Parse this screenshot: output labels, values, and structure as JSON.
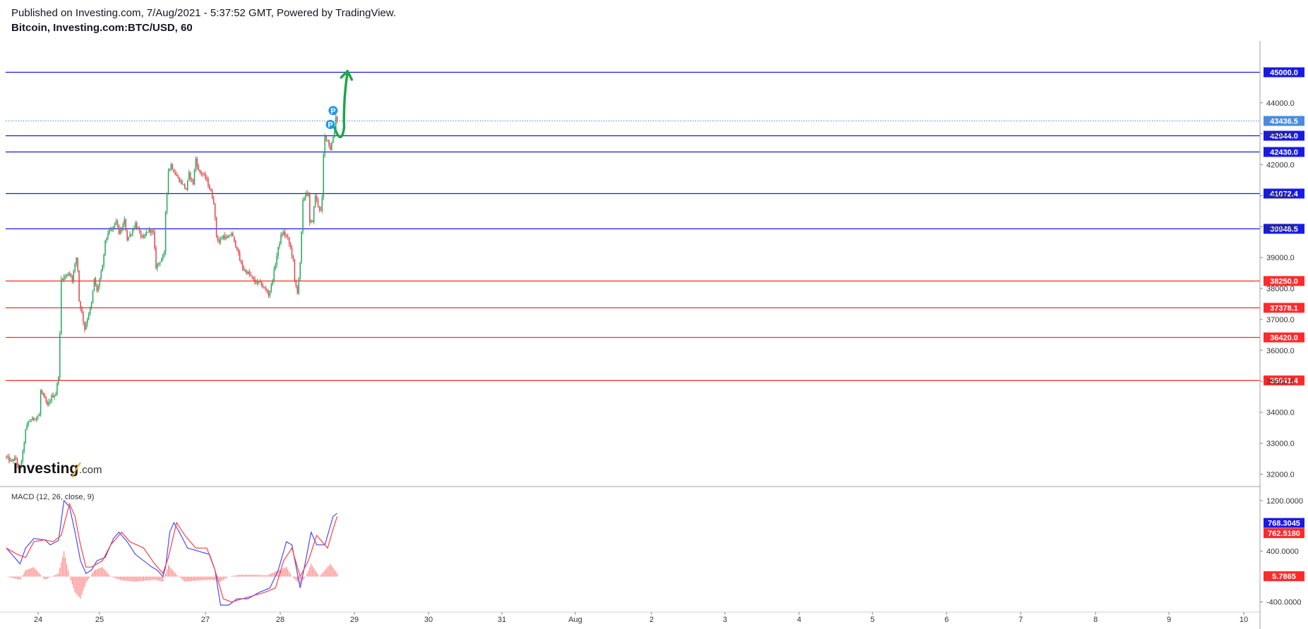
{
  "header": {
    "published": "Published on Investing.com, 7/Aug/2021 - 5:37:52 GMT, Powered by TradingView.",
    "symbol": "Bitcoin, Investing.com:BTC/USD, 60"
  },
  "logo": {
    "main": "Investing",
    "suffix": ".com"
  },
  "colors": {
    "up": "#26a65b",
    "down": "#e0454a",
    "resistance": "#1a1ae6",
    "support": "#ff2a2a",
    "macd": "#4b4bff",
    "signal": "#ff4040",
    "hist": "#ff6f6f",
    "last": "#4a8be0",
    "arrow": "#1fa64a",
    "marker": "#2196f3"
  },
  "chart_data": [
    {
      "type": "candlestick",
      "title": "Bitcoin, Investing.com:BTC/USD, 60",
      "x_ticks": [
        "24",
        "25",
        "27",
        "28",
        "29",
        "30",
        "31",
        "Aug",
        "2",
        "3",
        "4",
        "5",
        "6",
        "7",
        "8",
        "9",
        "10"
      ],
      "y_ticks": [
        "32000.0",
        "33000.0",
        "34000.0",
        "35000.0",
        "36000.0",
        "37000.0",
        "38000.0",
        "39000.0",
        "40000.0",
        "41000.0",
        "42000.0",
        "43000.0",
        "44000.0"
      ],
      "ylim": [
        31600,
        46000
      ],
      "candles_path": [
        [
          0,
          32550
        ],
        [
          3,
          32420
        ],
        [
          7,
          32500
        ],
        [
          9,
          32150
        ],
        [
          10,
          32200
        ],
        [
          12,
          32700
        ],
        [
          14,
          33400
        ],
        [
          16,
          33700
        ],
        [
          20,
          33800
        ],
        [
          24,
          33900
        ],
        [
          25,
          34700
        ],
        [
          27,
          34500
        ],
        [
          30,
          34200
        ],
        [
          33,
          34500
        ],
        [
          36,
          34600
        ],
        [
          38,
          35200
        ],
        [
          39,
          36500
        ],
        [
          40,
          38300
        ],
        [
          43,
          38400
        ],
        [
          46,
          38500
        ],
        [
          48,
          38300
        ],
        [
          51,
          39000
        ],
        [
          52,
          38600
        ],
        [
          53,
          37600
        ],
        [
          55,
          37200
        ],
        [
          57,
          36700
        ],
        [
          60,
          37200
        ],
        [
          62,
          37500
        ],
        [
          64,
          38300
        ],
        [
          66,
          37900
        ],
        [
          68,
          38300
        ],
        [
          70,
          38700
        ],
        [
          72,
          39500
        ],
        [
          74,
          39800
        ],
        [
          77,
          39900
        ],
        [
          80,
          40200
        ],
        [
          82,
          39800
        ],
        [
          84,
          39900
        ],
        [
          86,
          40200
        ],
        [
          88,
          39600
        ],
        [
          91,
          39800
        ],
        [
          94,
          40100
        ],
        [
          96,
          39900
        ],
        [
          98,
          39700
        ],
        [
          100,
          39600
        ],
        [
          102,
          39800
        ],
        [
          104,
          39900
        ],
        [
          107,
          39800
        ],
        [
          109,
          38700
        ],
        [
          112,
          38900
        ],
        [
          115,
          39100
        ],
        [
          116,
          40500
        ],
        [
          118,
          41800
        ],
        [
          120,
          42000
        ],
        [
          123,
          41700
        ],
        [
          126,
          41500
        ],
        [
          128,
          41400
        ],
        [
          131,
          41200
        ],
        [
          133,
          41700
        ],
        [
          136,
          41400
        ],
        [
          138,
          42200
        ],
        [
          140,
          41800
        ],
        [
          143,
          41700
        ],
        [
          146,
          41500
        ],
        [
          149,
          41100
        ],
        [
          151,
          40800
        ],
        [
          153,
          39700
        ],
        [
          155,
          39500
        ],
        [
          158,
          39700
        ],
        [
          161,
          39600
        ],
        [
          164,
          39800
        ],
        [
          166,
          39500
        ],
        [
          168,
          39300
        ],
        [
          170,
          38900
        ],
        [
          173,
          38600
        ],
        [
          176,
          38500
        ],
        [
          178,
          38400
        ],
        [
          181,
          38200
        ],
        [
          184,
          38200
        ],
        [
          186,
          38100
        ],
        [
          188,
          38000
        ],
        [
          191,
          37800
        ],
        [
          193,
          38100
        ],
        [
          196,
          38800
        ],
        [
          198,
          39300
        ],
        [
          200,
          39700
        ],
        [
          202,
          39800
        ],
        [
          205,
          39600
        ],
        [
          207,
          39300
        ],
        [
          209,
          38900
        ],
        [
          210,
          38200
        ],
        [
          212,
          37900
        ],
        [
          214,
          38800
        ],
        [
          216,
          40800
        ],
        [
          218,
          41100
        ],
        [
          220,
          41000
        ],
        [
          221,
          40100
        ],
        [
          223,
          40200
        ],
        [
          225,
          41000
        ],
        [
          227,
          40700
        ],
        [
          229,
          40500
        ],
        [
          230,
          40900
        ],
        [
          231,
          42300
        ],
        [
          232,
          42900
        ],
        [
          234,
          42800
        ],
        [
          236,
          42500
        ],
        [
          237,
          42700
        ],
        [
          239,
          43100
        ],
        [
          240,
          43550
        ],
        [
          241,
          43436
        ]
      ],
      "levels": [
        {
          "value": 45000.0,
          "label": "45000.0",
          "kind": "resistance"
        },
        {
          "value": 42944.0,
          "label": "42944.0",
          "kind": "resistance"
        },
        {
          "value": 42430.0,
          "label": "42430.0",
          "kind": "resistance"
        },
        {
          "value": 41072.4,
          "label": "41072.4",
          "kind": "resistance"
        },
        {
          "value": 39948.5,
          "label": "39948.5",
          "kind": "resistance"
        },
        {
          "value": 38250.0,
          "label": "38250.0",
          "kind": "support"
        },
        {
          "value": 37378.1,
          "label": "37378.1",
          "kind": "support"
        },
        {
          "value": 36420.0,
          "label": "36420.0",
          "kind": "support"
        },
        {
          "value": 35041.4,
          "label": "35041.4",
          "kind": "support"
        }
      ],
      "last_price": {
        "value": 43436.5,
        "label": "43436.5"
      },
      "markers": [
        {
          "label": "P",
          "x": 236,
          "y": 43300
        },
        {
          "label": "P",
          "x": 238,
          "y": 43750
        }
      ],
      "projection_arrow": [
        [
          239,
          43200
        ],
        [
          244,
          42720
        ],
        [
          246,
          43200
        ],
        [
          248.5,
          45000
        ]
      ]
    },
    {
      "type": "line",
      "title": "MACD (12, 26, close, 9)",
      "y_ticks": [
        "1200.0000",
        "400.0000",
        "-400.0000"
      ],
      "ylim": [
        -560,
        1420
      ],
      "series": [
        {
          "name": "MACD",
          "values_path": [
            [
              0,
              450
            ],
            [
              10,
              200
            ],
            [
              14,
              450
            ],
            [
              20,
              600
            ],
            [
              28,
              580
            ],
            [
              32,
              500
            ],
            [
              38,
              570
            ],
            [
              42,
              1200
            ],
            [
              46,
              1100
            ],
            [
              50,
              700
            ],
            [
              54,
              250
            ],
            [
              58,
              50
            ],
            [
              62,
              100
            ],
            [
              66,
              250
            ],
            [
              72,
              300
            ],
            [
              78,
              600
            ],
            [
              82,
              700
            ],
            [
              88,
              550
            ],
            [
              94,
              350
            ],
            [
              100,
              250
            ],
            [
              106,
              150
            ],
            [
              110,
              100
            ],
            [
              114,
              0
            ],
            [
              116,
              150
            ],
            [
              119,
              700
            ],
            [
              122,
              850
            ],
            [
              126,
              700
            ],
            [
              132,
              450
            ],
            [
              140,
              400
            ],
            [
              148,
              350
            ],
            [
              152,
              100
            ],
            [
              156,
              -450
            ],
            [
              162,
              -450
            ],
            [
              168,
              -350
            ],
            [
              176,
              -350
            ],
            [
              184,
              -250
            ],
            [
              192,
              -180
            ],
            [
              198,
              100
            ],
            [
              204,
              550
            ],
            [
              208,
              500
            ],
            [
              214,
              -180
            ],
            [
              218,
              250
            ],
            [
              222,
              700
            ],
            [
              226,
              500
            ],
            [
              232,
              500
            ],
            [
              238,
              950
            ],
            [
              241,
              1000
            ]
          ]
        },
        {
          "name": "Signal",
          "values_path": [
            [
              0,
              450
            ],
            [
              8,
              350
            ],
            [
              14,
              300
            ],
            [
              20,
              550
            ],
            [
              28,
              580
            ],
            [
              34,
              550
            ],
            [
              40,
              650
            ],
            [
              46,
              1150
            ],
            [
              50,
              950
            ],
            [
              54,
              500
            ],
            [
              58,
              150
            ],
            [
              62,
              150
            ],
            [
              70,
              250
            ],
            [
              76,
              500
            ],
            [
              84,
              700
            ],
            [
              90,
              550
            ],
            [
              100,
              450
            ],
            [
              108,
              200
            ],
            [
              114,
              50
            ],
            [
              118,
              300
            ],
            [
              124,
              850
            ],
            [
              130,
              650
            ],
            [
              138,
              450
            ],
            [
              146,
              450
            ],
            [
              152,
              100
            ],
            [
              158,
              -350
            ],
            [
              164,
              -400
            ],
            [
              172,
              -350
            ],
            [
              180,
              -300
            ],
            [
              188,
              -250
            ],
            [
              196,
              -180
            ],
            [
              202,
              250
            ],
            [
              208,
              450
            ],
            [
              214,
              0
            ],
            [
              220,
              250
            ],
            [
              226,
              650
            ],
            [
              234,
              450
            ],
            [
              238,
              750
            ],
            [
              241,
              950
            ]
          ]
        }
      ],
      "histogram_path": [
        [
          0,
          0
        ],
        [
          10,
          -50
        ],
        [
          14,
          100
        ],
        [
          20,
          150
        ],
        [
          28,
          -50
        ],
        [
          38,
          50
        ],
        [
          42,
          400
        ],
        [
          46,
          0
        ],
        [
          50,
          -250
        ],
        [
          54,
          -350
        ],
        [
          58,
          -100
        ],
        [
          64,
          100
        ],
        [
          70,
          150
        ],
        [
          76,
          0
        ],
        [
          84,
          -60
        ],
        [
          94,
          -80
        ],
        [
          108,
          -50
        ],
        [
          114,
          -80
        ],
        [
          118,
          180
        ],
        [
          124,
          30
        ],
        [
          130,
          -80
        ],
        [
          140,
          -60
        ],
        [
          150,
          -50
        ],
        [
          156,
          -80
        ],
        [
          162,
          0
        ],
        [
          170,
          30
        ],
        [
          180,
          30
        ],
        [
          190,
          20
        ],
        [
          198,
          100
        ],
        [
          204,
          150
        ],
        [
          208,
          0
        ],
        [
          214,
          -120
        ],
        [
          218,
          0
        ],
        [
          222,
          200
        ],
        [
          228,
          0
        ],
        [
          236,
          200
        ],
        [
          241,
          50
        ]
      ],
      "tags": [
        {
          "value": 768.3045,
          "label": "768.3045",
          "kind": "macd"
        },
        {
          "value": 762.518,
          "label": "762.5180",
          "kind": "signal"
        },
        {
          "value": 5.7865,
          "label": "5.7865",
          "kind": "hist"
        }
      ]
    }
  ]
}
